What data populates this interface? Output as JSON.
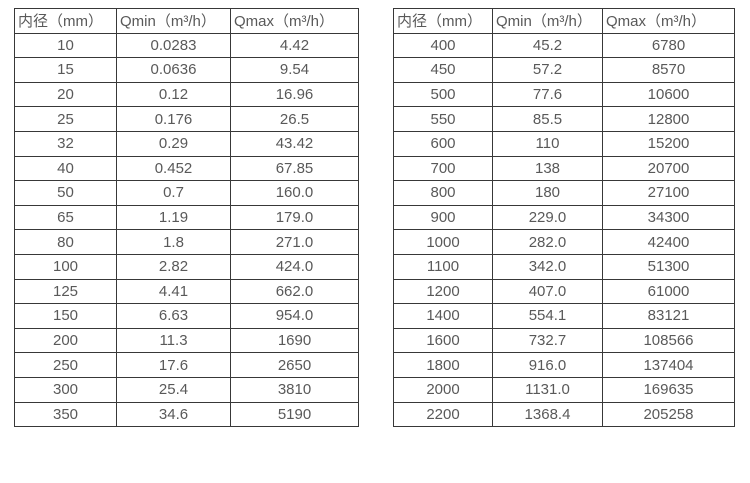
{
  "colors": {
    "background": "#ffffff",
    "border": "#383838",
    "text": "#595959"
  },
  "tables": [
    {
      "name": "flow-range-small-diameters",
      "headers": [
        "内径（mm）",
        "Qmin（m³/h）",
        "Qmax（m³/h）"
      ],
      "rows": [
        [
          "10",
          "0.0283",
          "4.42"
        ],
        [
          "15",
          "0.0636",
          "9.54"
        ],
        [
          "20",
          "0.12",
          "16.96"
        ],
        [
          "25",
          "0.176",
          "26.5"
        ],
        [
          "32",
          "0.29",
          "43.42"
        ],
        [
          "40",
          "0.452",
          "67.85"
        ],
        [
          "50",
          "0.7",
          "160.0"
        ],
        [
          "65",
          "1.19",
          "179.0"
        ],
        [
          "80",
          "1.8",
          "271.0"
        ],
        [
          "100",
          "2.82",
          "424.0"
        ],
        [
          "125",
          "4.41",
          "662.0"
        ],
        [
          "150",
          "6.63",
          "954.0"
        ],
        [
          "200",
          "11.3",
          "1690"
        ],
        [
          "250",
          "17.6",
          "2650"
        ],
        [
          "300",
          "25.4",
          "3810"
        ],
        [
          "350",
          "34.6",
          "5190"
        ]
      ]
    },
    {
      "name": "flow-range-large-diameters",
      "headers": [
        "内径（mm）",
        "Qmin（m³/h）",
        "Qmax（m³/h）"
      ],
      "rows": [
        [
          "400",
          "45.2",
          "6780"
        ],
        [
          "450",
          "57.2",
          "8570"
        ],
        [
          "500",
          "77.6",
          "10600"
        ],
        [
          "550",
          "85.5",
          "12800"
        ],
        [
          "600",
          "110",
          "15200"
        ],
        [
          "700",
          "138",
          "20700"
        ],
        [
          "800",
          "180",
          "27100"
        ],
        [
          "900",
          "229.0",
          "34300"
        ],
        [
          "1000",
          "282.0",
          "42400"
        ],
        [
          "1100",
          "342.0",
          "51300"
        ],
        [
          "1200",
          "407.0",
          "61000"
        ],
        [
          "1400",
          "554.1",
          "83121"
        ],
        [
          "1600",
          "732.7",
          "108566"
        ],
        [
          "1800",
          "916.0",
          "137404"
        ],
        [
          "2000",
          "1131.0",
          "169635"
        ],
        [
          "2200",
          "1368.4",
          "205258"
        ]
      ]
    }
  ]
}
